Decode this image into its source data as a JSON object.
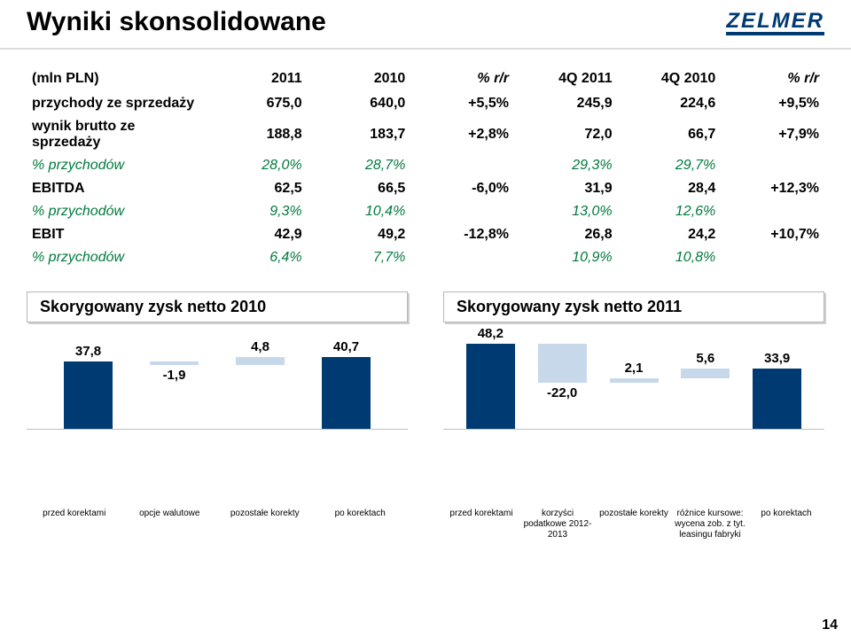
{
  "header": {
    "title": "Wyniki skonsolidowane",
    "logo_text": "ZELMER",
    "logo_color": "#003a73"
  },
  "table": {
    "columns": [
      "(mln PLN)",
      "2011",
      "2010",
      "% r/r",
      "4Q 2011",
      "4Q 2010",
      "% r/r"
    ],
    "col_italic": [
      false,
      false,
      false,
      true,
      false,
      false,
      true
    ],
    "rows": [
      {
        "bold": true,
        "cells": [
          "przychody ze sprzedaży",
          "675,0",
          "640,0",
          "+5,5%",
          "245,9",
          "224,6",
          "+9,5%"
        ]
      },
      {
        "bold": true,
        "cells": [
          "wynik brutto ze sprzedaży",
          "188,8",
          "183,7",
          "+2,8%",
          "72,0",
          "66,7",
          "+7,9%"
        ]
      },
      {
        "pct": true,
        "cells": [
          "% przychodów",
          "28,0%",
          "28,7%",
          "",
          "29,3%",
          "29,7%",
          ""
        ]
      },
      {
        "bold": true,
        "cells": [
          "EBITDA",
          "62,5",
          "66,5",
          "-6,0%",
          "31,9",
          "28,4",
          "+12,3%"
        ]
      },
      {
        "pct": true,
        "cells": [
          "% przychodów",
          "9,3%",
          "10,4%",
          "",
          "13,0%",
          "12,6%",
          ""
        ]
      },
      {
        "bold": true,
        "cells": [
          "EBIT",
          "42,9",
          "49,2",
          "-12,8%",
          "26,8",
          "24,2",
          "+10,7%"
        ]
      },
      {
        "pct": true,
        "cells": [
          "% przychodów",
          "6,4%",
          "7,7%",
          "",
          "10,9%",
          "10,8%",
          ""
        ]
      }
    ]
  },
  "chart_left": {
    "type": "waterfall",
    "title": "Skorygowany zysk netto 2010",
    "axis_at": 100,
    "scale": 2.0,
    "bars": [
      {
        "label": "37,8",
        "value": 37.8,
        "start_from": 0,
        "color": "#003a73",
        "pos": "above"
      },
      {
        "label": "-1,9",
        "value": -1.9,
        "start_from": 37.8,
        "color": "#c7d8eb",
        "pos": "below"
      },
      {
        "label": "4,8",
        "value": 4.8,
        "start_from": 35.9,
        "color": "#c7d8eb",
        "pos": "above"
      },
      {
        "label": "40,7",
        "value": 40.7,
        "start_from": 0,
        "color": "#003a73",
        "pos": "above"
      }
    ],
    "categories": [
      "przed korektami",
      "opcje walutowe",
      "pozostałe korekty",
      "po korektach"
    ]
  },
  "chart_right": {
    "type": "waterfall",
    "title": "Skorygowany zysk netto 2011",
    "axis_at": 100,
    "scale": 2.0,
    "bars": [
      {
        "label": "48,2",
        "value": 48.2,
        "start_from": 0,
        "color": "#003a73",
        "pos": "above"
      },
      {
        "label": "-22,0",
        "value": -22.0,
        "start_from": 48.2,
        "color": "#c7d8eb",
        "pos": "below"
      },
      {
        "label": "2,1",
        "value": 2.1,
        "start_from": 26.2,
        "color": "#c7d8eb",
        "pos": "above"
      },
      {
        "label": "5,6",
        "value": 5.6,
        "start_from": 28.3,
        "color": "#c7d8eb",
        "pos": "above"
      },
      {
        "label": "33,9",
        "value": 33.9,
        "start_from": 0,
        "color": "#003a73",
        "pos": "above"
      }
    ],
    "categories": [
      "przed korektami",
      "korzyści podatkowe 2012-2013",
      "pozostałe korekty",
      "różnice kursowe: wycena zob. z tyt. leasingu fabryki",
      "po korektach"
    ]
  },
  "page_number": "14",
  "colors": {
    "background": "#ffffff",
    "divider": "#dcdcdc",
    "axis": "#bfbfbf",
    "pct_text": "#007a3d",
    "title_box_border": "#b5b5b5"
  },
  "fonts": {
    "title_size": 30,
    "table_size": 16,
    "chart_title_size": 18,
    "bar_label_size": 15,
    "category_size": 10
  }
}
